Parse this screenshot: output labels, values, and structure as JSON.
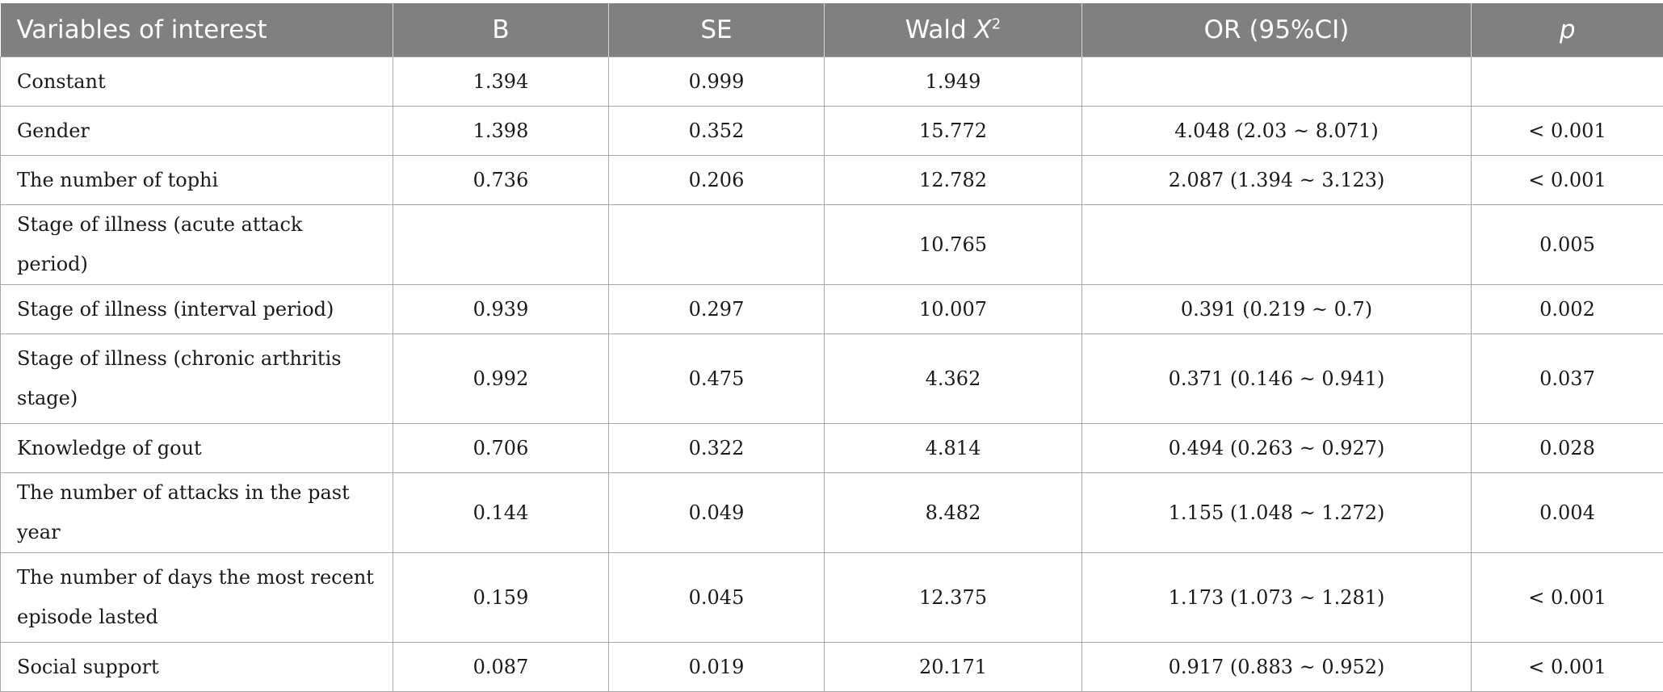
{
  "table": {
    "headers": {
      "variable": "Variables of interest",
      "b": "B",
      "se": "SE",
      "wald_prefix": "Wald ",
      "wald_var": "X",
      "wald_sup": "2",
      "or": "OR (95%CI)",
      "p": "p"
    },
    "rows": [
      {
        "variable": "Constant",
        "b": "1.394",
        "se": "0.999",
        "wald": "1.949",
        "or": "",
        "p": ""
      },
      {
        "variable": "Gender",
        "b": "1.398",
        "se": "0.352",
        "wald": "15.772",
        "or": "4.048 (2.03 ~ 8.071)",
        "p": "< 0.001"
      },
      {
        "variable": "The number of tophi",
        "b": "0.736",
        "se": "0.206",
        "wald": "12.782",
        "or": "2.087 (1.394 ~ 3.123)",
        "p": "< 0.001"
      },
      {
        "variable": "Stage of illness (acute attack period)",
        "b": "",
        "se": "",
        "wald": "10.765",
        "or": "",
        "p": "0.005"
      },
      {
        "variable": "Stage of illness (interval period)",
        "b": "0.939",
        "se": "0.297",
        "wald": "10.007",
        "or": "0.391 (0.219 ~ 0.7)",
        "p": "0.002"
      },
      {
        "variable": "Stage of illness (chronic arthritis stage)",
        "b": "0.992",
        "se": "0.475",
        "wald": "4.362",
        "or": "0.371 (0.146 ~ 0.941)",
        "p": "0.037"
      },
      {
        "variable": "Knowledge of gout",
        "b": "0.706",
        "se": "0.322",
        "wald": "4.814",
        "or": "0.494 (0.263 ~ 0.927)",
        "p": "0.028"
      },
      {
        "variable": "The number of attacks in the past year",
        "b": "0.144",
        "se": "0.049",
        "wald": "8.482",
        "or": "1.155 (1.048 ~ 1.272)",
        "p": "0.004"
      },
      {
        "variable": "The number of days the most recent episode lasted",
        "b": "0.159",
        "se": "0.045",
        "wald": "12.375",
        "or": "1.173 (1.073 ~ 1.281)",
        "p": "< 0.001"
      },
      {
        "variable": "Social support",
        "b": "0.087",
        "se": "0.019",
        "wald": "20.171",
        "or": "0.917 (0.883 ~ 0.952)",
        "p": "< 0.001"
      }
    ]
  },
  "colors": {
    "header_bg": "#808080",
    "header_text": "#ffffff",
    "grid_line": "#a6a6a6",
    "body_text": "#1a1a1a"
  }
}
